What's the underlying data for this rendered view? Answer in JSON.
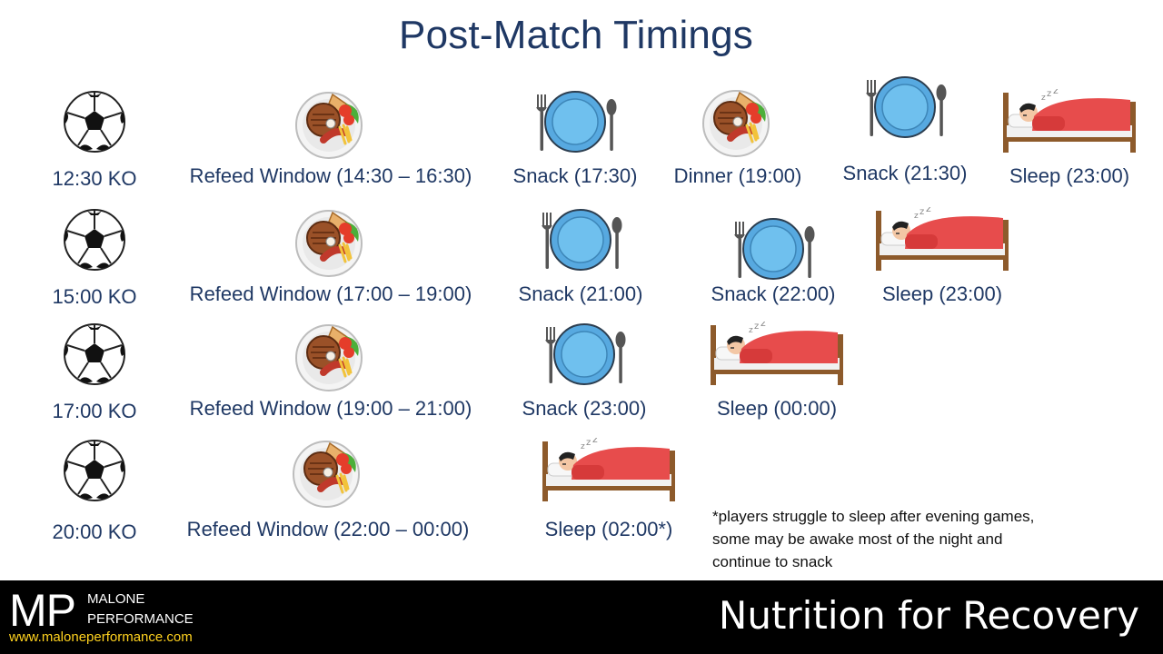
{
  "title": "Post-Match Timings",
  "rows": [
    {
      "kickoff": "12:30 KO",
      "events": [
        {
          "type": "meal",
          "label": "Refeed Window (14:30 – 16:30)"
        },
        {
          "type": "snack",
          "label": "Snack (17:30)"
        },
        {
          "type": "meal",
          "label": "Dinner (19:00)"
        },
        {
          "type": "snack",
          "label": "Snack (21:30)"
        },
        {
          "type": "sleep",
          "label": "Sleep (23:00)"
        }
      ]
    },
    {
      "kickoff": "15:00 KO",
      "events": [
        {
          "type": "meal",
          "label": "Refeed Window (17:00 – 19:00)"
        },
        {
          "type": "snack",
          "label": "Snack (21:00)"
        },
        {
          "type": "snack",
          "label": "Snack (22:00)"
        },
        {
          "type": "sleep",
          "label": "Sleep (23:00)"
        }
      ]
    },
    {
      "kickoff": "17:00 KO",
      "events": [
        {
          "type": "meal",
          "label": "Refeed Window (19:00 – 21:00)"
        },
        {
          "type": "snack",
          "label": "Snack (23:00)"
        },
        {
          "type": "sleep",
          "label": "Sleep (00:00)"
        }
      ]
    },
    {
      "kickoff": "20:00 KO",
      "events": [
        {
          "type": "meal",
          "label": "Refeed Window (22:00 – 00:00)"
        },
        {
          "type": "sleep",
          "label": "Sleep (02:00*)"
        }
      ]
    }
  ],
  "note": "*players struggle to sleep after evening games, some may be awake most of the night and continue to snack",
  "footer": {
    "logo": "MP",
    "brand_line1": "MALONE",
    "brand_line2": "PERFORMANCE",
    "website": "www.maloneperformance.com",
    "tagline": "Nutrition for Recovery"
  }
}
